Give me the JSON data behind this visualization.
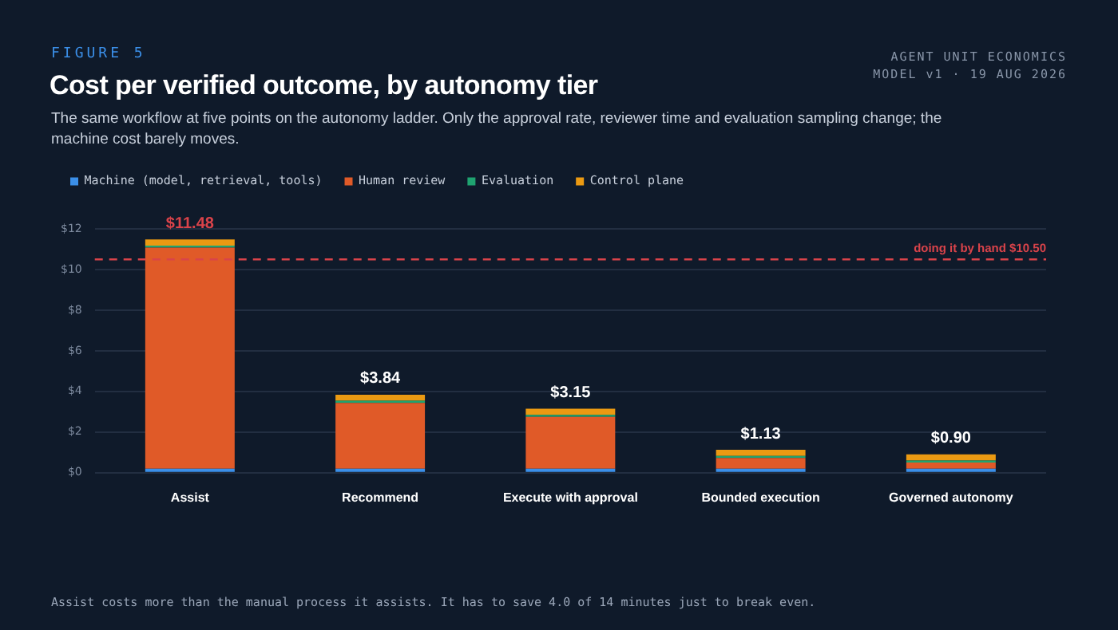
{
  "chart_data": {
    "type": "bar",
    "stacked": true,
    "title": "Cost per verified outcome, by autonomy tier",
    "subtitle": "The same workflow at five points on the autonomy ladder. Only the approval rate, reviewer time and evaluation sampling change; the machine cost barely moves.",
    "annotations": [
      "FIGURE 5",
      "AGENT UNIT ECONOMICS",
      "MODEL v1 · 19 AUG 2026",
      "Assist costs more than the manual process it assists. It has to save 4.0 of 14 minutes just to break even."
    ],
    "categories": [
      "Assist",
      "Recommend",
      "Execute with approval",
      "Bounded execution",
      "Governed autonomy"
    ],
    "series": [
      {
        "name": "Machine (model, retrieval, tools)",
        "color": "#3b8fe8",
        "values": [
          0.2,
          0.2,
          0.2,
          0.2,
          0.2
        ]
      },
      {
        "name": "Human review",
        "color": "#e05a28",
        "values": [
          10.88,
          3.24,
          2.55,
          0.53,
          0.3
        ]
      },
      {
        "name": "Evaluation",
        "color": "#1fa370",
        "values": [
          0.1,
          0.1,
          0.1,
          0.1,
          0.1
        ]
      },
      {
        "name": "Control plane",
        "color": "#eb9a12",
        "values": [
          0.3,
          0.3,
          0.3,
          0.3,
          0.3
        ]
      }
    ],
    "totals": [
      "$11.48",
      "$3.84",
      "$3.15",
      "$1.13",
      "$0.90"
    ],
    "ylim": [
      0,
      12
    ],
    "yticks": [
      {
        "value": 0,
        "label": "$0"
      },
      {
        "value": 2,
        "label": "$2"
      },
      {
        "value": 4,
        "label": "$4"
      },
      {
        "value": 6,
        "label": "$6"
      },
      {
        "value": 8,
        "label": "$8"
      },
      {
        "value": 10,
        "label": "$10"
      },
      {
        "value": 12,
        "label": "$12"
      }
    ],
    "ref_lines": [
      {
        "axis": "y",
        "value": 10.5,
        "label": "doing it by hand $10.50",
        "color": "#d9434a",
        "line_style": "dashed"
      }
    ],
    "grid": "y",
    "legend": "top left"
  }
}
